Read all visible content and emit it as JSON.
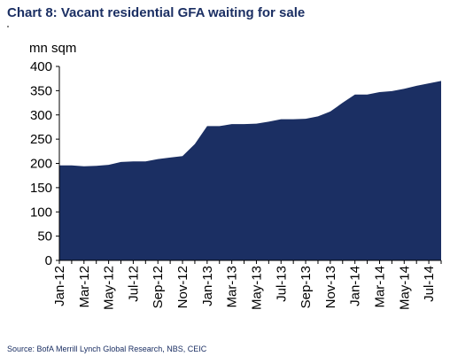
{
  "title": "Chart 8: Vacant residential GFA waiting for sale",
  "source": "Source: BofA Merrill Lynch Global Research, NBS, CEIC",
  "colors": {
    "area": "#1b2f63",
    "title": "#1b2f63"
  },
  "chart_data": {
    "type": "area",
    "title": "Chart 8: Vacant residential GFA waiting for sale",
    "ylabel": "mn sqm",
    "xlabel": "",
    "ylim": [
      0,
      400
    ],
    "yticks": [
      0,
      50,
      100,
      150,
      200,
      250,
      300,
      350,
      400
    ],
    "grid": false,
    "legend": "none",
    "x_tick_labels": [
      "Jan-12",
      "Mar-12",
      "May-12",
      "Jul-12",
      "Sep-12",
      "Nov-12",
      "Jan-13",
      "Mar-13",
      "May-13",
      "Jul-13",
      "Sep-13",
      "Nov-13",
      "Jan-14",
      "Mar-14",
      "May-14",
      "Jul-14"
    ],
    "x": [
      "Jan-12",
      "Feb-12",
      "Mar-12",
      "Apr-12",
      "May-12",
      "Jun-12",
      "Jul-12",
      "Aug-12",
      "Sep-12",
      "Oct-12",
      "Nov-12",
      "Dec-12",
      "Jan-13",
      "Feb-13",
      "Mar-13",
      "Apr-13",
      "May-13",
      "Jun-13",
      "Jul-13",
      "Aug-13",
      "Sep-13",
      "Oct-13",
      "Nov-13",
      "Dec-13",
      "Jan-14",
      "Feb-14",
      "Mar-14",
      "Apr-14",
      "May-14",
      "Jun-14",
      "Jul-14",
      "Aug-14"
    ],
    "values": [
      196,
      196,
      194,
      195,
      197,
      203,
      204,
      204,
      209,
      212,
      215,
      240,
      277,
      277,
      281,
      281,
      282,
      286,
      291,
      291,
      292,
      297,
      307,
      325,
      342,
      342,
      347,
      349,
      354,
      360,
      365,
      370
    ]
  }
}
